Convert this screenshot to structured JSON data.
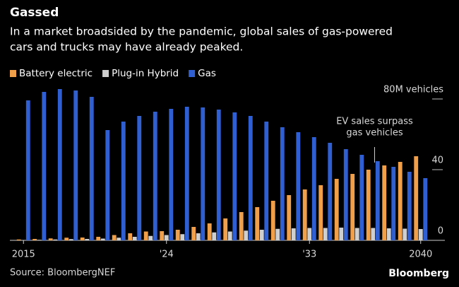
{
  "chart_data": {
    "type": "bar",
    "title": "Gassed",
    "subtitle": [
      "In a market broadsided by the pandemic, global sales of gas-powered",
      "cars and trucks may have already peaked."
    ],
    "categories": [
      "2015",
      null,
      null,
      null,
      null,
      null,
      null,
      null,
      null,
      "'24",
      null,
      null,
      null,
      null,
      null,
      null,
      null,
      null,
      "'33",
      null,
      null,
      null,
      null,
      null,
      null,
      "2040"
    ],
    "series": [
      {
        "name": "Battery electric",
        "color": "#f0a04b",
        "values": [
          0.5,
          0.8,
          1.1,
          1.5,
          1.6,
          2,
          3,
          4,
          5,
          5.2,
          6,
          7.6,
          9.6,
          12.4,
          16,
          18.8,
          22.4,
          25.6,
          28.8,
          31.2,
          34.8,
          37.6,
          40,
          42.4,
          44.4,
          47.6
        ]
      },
      {
        "name": "Plug-in Hybrid",
        "color": "#cfcfcf",
        "values": [
          0.2,
          0.3,
          0.5,
          0.7,
          0.8,
          1,
          1.5,
          2,
          2.5,
          3,
          3.5,
          4,
          4.5,
          5,
          5.5,
          6,
          6.5,
          6.8,
          7,
          7,
          7.2,
          7,
          7,
          6.8,
          6.6,
          6.4
        ]
      },
      {
        "name": "Gas",
        "color": "#2f5fd0",
        "values": [
          79.2,
          84,
          85.6,
          84.8,
          81.2,
          62.4,
          67.2,
          70.4,
          72.8,
          74.4,
          75.6,
          75.2,
          74,
          72.4,
          70.4,
          67.2,
          64,
          61.2,
          58.4,
          55.2,
          51.6,
          48.4,
          44.8,
          41.6,
          38.8,
          35.2
        ]
      }
    ],
    "ylim": [
      0,
      88
    ],
    "yticks": [
      0,
      40,
      {
        "value": 80,
        "label": "80M vehicles"
      }
    ],
    "annotation": [
      "EV sales surpass",
      "gas vehicles"
    ],
    "source": "Source: BloombergNEF",
    "logo": "Bloomberg"
  }
}
